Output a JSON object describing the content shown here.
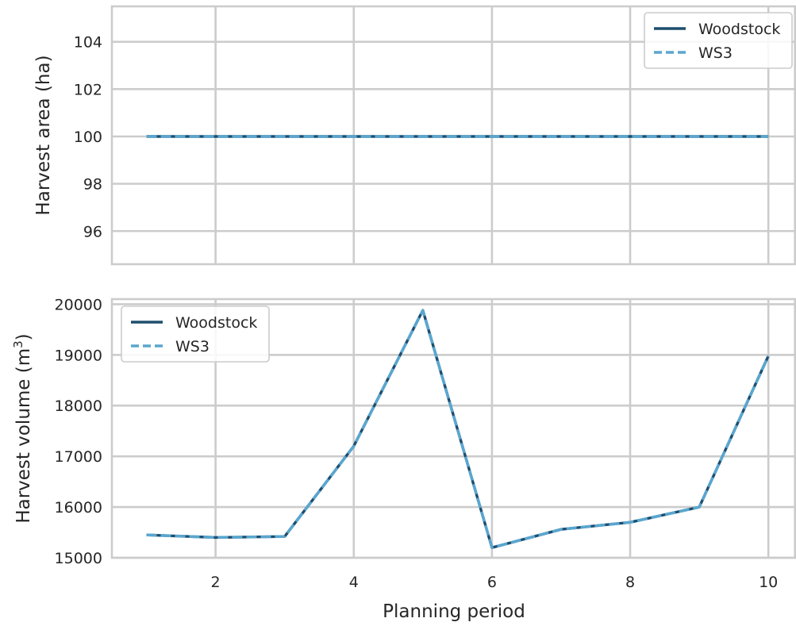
{
  "chart_data": [
    {
      "type": "line",
      "ylabel": "Harvest area (ha)",
      "xlabel": "",
      "xlim": [
        0.5,
        10.4
      ],
      "ylim": [
        94.6,
        105.5
      ],
      "xticks": [
        2,
        4,
        6,
        8,
        10
      ],
      "yticks": [
        96,
        98,
        100,
        102,
        104
      ],
      "x": [
        1,
        2,
        3,
        4,
        5,
        6,
        7,
        8,
        9,
        10
      ],
      "legend": "top-right",
      "grid": true,
      "series": [
        {
          "name": "Woodstock",
          "style": "solid",
          "color": "#1f4e6e",
          "values": [
            100,
            100,
            100,
            100,
            100,
            100,
            100,
            100,
            100,
            100
          ]
        },
        {
          "name": "WS3",
          "style": "dashed",
          "color": "#5aa6cf",
          "values": [
            100,
            100,
            100,
            100,
            100,
            100,
            100,
            100,
            100,
            100
          ]
        }
      ]
    },
    {
      "type": "line",
      "ylabel": "Harvest volume (m",
      "ylabel_sup": "3",
      "ylabel_end": ")",
      "xlabel": "Planning period",
      "xlim": [
        0.5,
        10.4
      ],
      "ylim": [
        15000,
        20100
      ],
      "xticks": [
        2,
        4,
        6,
        8,
        10
      ],
      "yticks": [
        15000,
        16000,
        17000,
        18000,
        19000,
        20000
      ],
      "x": [
        1,
        2,
        3,
        4,
        5,
        6,
        7,
        8,
        9,
        10
      ],
      "legend": "top-left",
      "grid": true,
      "series": [
        {
          "name": "Woodstock",
          "style": "solid",
          "color": "#1f4e6e",
          "values": [
            15450,
            15400,
            15420,
            17200,
            19880,
            15200,
            15560,
            15700,
            16000,
            18980
          ]
        },
        {
          "name": "WS3",
          "style": "dashed",
          "color": "#5aa6cf",
          "values": [
            15450,
            15400,
            15420,
            17200,
            19880,
            15200,
            15560,
            15700,
            16000,
            18980
          ]
        }
      ]
    }
  ]
}
